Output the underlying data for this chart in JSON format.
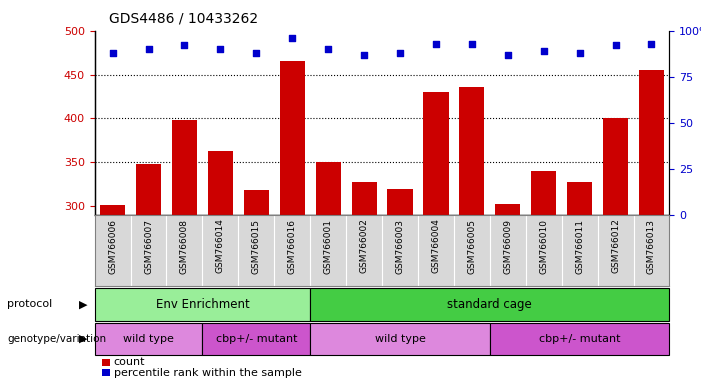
{
  "title": "GDS4486 / 10433262",
  "samples": [
    "GSM766006",
    "GSM766007",
    "GSM766008",
    "GSM766014",
    "GSM766015",
    "GSM766016",
    "GSM766001",
    "GSM766002",
    "GSM766003",
    "GSM766004",
    "GSM766005",
    "GSM766009",
    "GSM766010",
    "GSM766011",
    "GSM766012",
    "GSM766013"
  ],
  "counts": [
    302,
    348,
    398,
    363,
    318,
    465,
    350,
    328,
    320,
    430,
    436,
    303,
    340,
    328,
    400,
    455
  ],
  "percentile_ranks": [
    88,
    90,
    92,
    90,
    88,
    96,
    90,
    87,
    88,
    93,
    93,
    87,
    89,
    88,
    92,
    93
  ],
  "ylim_left": [
    290,
    500
  ],
  "ylim_right": [
    0,
    100
  ],
  "yticks_left": [
    300,
    350,
    400,
    450,
    500
  ],
  "yticks_right": [
    0,
    25,
    50,
    75,
    100
  ],
  "bar_color": "#cc0000",
  "dot_color": "#0000cc",
  "protocol_labels": [
    "Env Enrichment",
    "standard cage"
  ],
  "protocol_colors": [
    "#99ee99",
    "#44cc44"
  ],
  "genotype_labels": [
    "wild type",
    "cbp+/- mutant",
    "wild type",
    "cbp+/- mutant"
  ],
  "genotype_color": "#cc55cc",
  "genotype_color2": "#dd88dd",
  "background_color": "#ffffff",
  "tick_label_color_left": "#cc0000",
  "tick_label_color_right": "#0000cc",
  "xtick_bg": "#d8d8d8"
}
